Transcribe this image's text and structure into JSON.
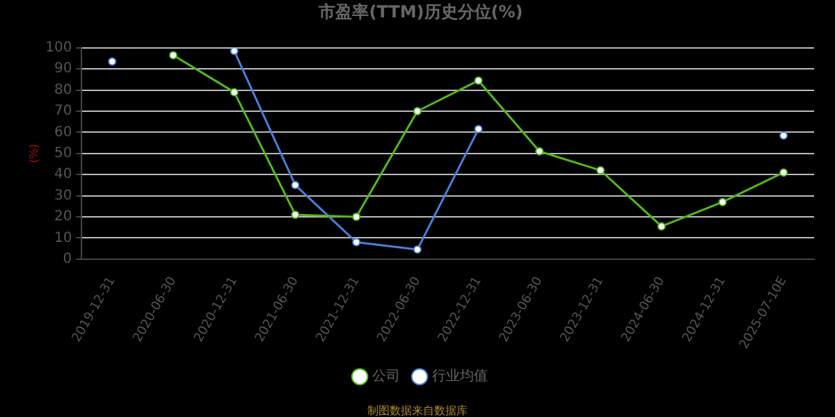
{
  "chart_data": {
    "type": "line",
    "title": "市盈率(TTM)历史分位(%)",
    "ylabel": "(%)",
    "categories": [
      "2019-12-31",
      "2020-06-30",
      "2020-12-31",
      "2021-06-30",
      "2021-12-31",
      "2022-06-30",
      "2022-12-31",
      "2023-06-30",
      "2023-12-31",
      "2024-06-30",
      "2024-12-31",
      "2025-07-10E"
    ],
    "series": [
      {
        "name": "公司",
        "color": "#52b81c",
        "values": [
          null,
          96.5,
          79,
          21,
          20,
          70,
          84.5,
          51,
          42,
          15.5,
          27,
          41
        ]
      },
      {
        "name": "行业均值",
        "color": "#4a7fd8",
        "values": [
          93.5,
          null,
          98.5,
          35,
          8,
          4.5,
          61.5,
          null,
          null,
          null,
          null,
          58.5
        ]
      }
    ],
    "ylim": [
      0,
      100
    ],
    "yticks": [
      0,
      10,
      20,
      30,
      40,
      50,
      60,
      70,
      80,
      90,
      100
    ],
    "grid": "y",
    "legend": "bottom",
    "marker": "circle",
    "line_style": "solid",
    "annotations": [
      "制图数据来自数据库"
    ]
  }
}
